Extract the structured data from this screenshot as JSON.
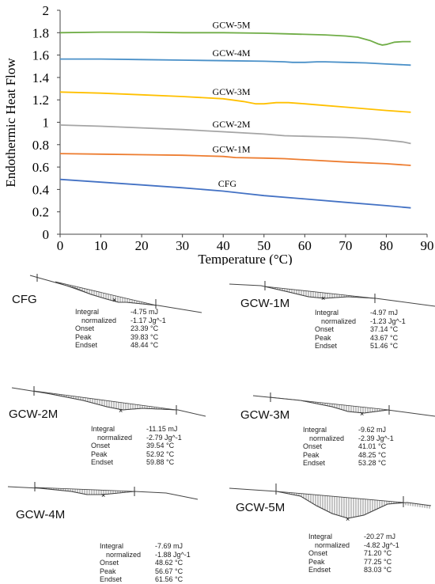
{
  "chart_data": {
    "type": "line",
    "xlabel": "Temperature (°C)",
    "ylabel": "Endothermic Heat Flow",
    "xlim": [
      0,
      90
    ],
    "ylim": [
      0,
      2
    ],
    "x_ticks": [
      "0",
      "10",
      "20",
      "30",
      "40",
      "50",
      "60",
      "70",
      "80",
      "90"
    ],
    "y_ticks": [
      "0",
      "0.2",
      "0.4",
      "0.6",
      "0.8",
      "1",
      "1.2",
      "1.4",
      "1.6",
      "1.8",
      "2"
    ],
    "grid": false,
    "series": [
      {
        "name": "GCW-5M",
        "color": "#70ad47",
        "x": [
          0,
          10,
          20,
          30,
          40,
          50,
          55,
          60,
          65,
          70,
          73,
          76,
          78,
          79,
          80,
          82,
          84,
          86
        ],
        "y": [
          1.8,
          1.805,
          1.805,
          1.8,
          1.8,
          1.795,
          1.79,
          1.785,
          1.78,
          1.77,
          1.76,
          1.73,
          1.7,
          1.69,
          1.695,
          1.715,
          1.72,
          1.72
        ]
      },
      {
        "name": "GCW-4M",
        "color": "#4a90c8",
        "x": [
          0,
          10,
          20,
          30,
          40,
          50,
          55,
          57,
          60,
          63,
          65,
          70,
          75,
          80,
          86
        ],
        "y": [
          1.565,
          1.565,
          1.56,
          1.555,
          1.55,
          1.545,
          1.54,
          1.535,
          1.535,
          1.54,
          1.54,
          1.535,
          1.53,
          1.52,
          1.51
        ]
      },
      {
        "name": "GCW-3M",
        "color": "#ffc000",
        "x": [
          0,
          10,
          20,
          30,
          40,
          45,
          48,
          50,
          53,
          56,
          60,
          65,
          70,
          75,
          80,
          86
        ],
        "y": [
          1.27,
          1.26,
          1.245,
          1.23,
          1.21,
          1.185,
          1.165,
          1.165,
          1.175,
          1.175,
          1.165,
          1.15,
          1.135,
          1.12,
          1.105,
          1.09
        ]
      },
      {
        "name": "GCW-2M",
        "color": "#a5a5a5",
        "x": [
          0,
          10,
          20,
          30,
          40,
          50,
          55,
          60,
          65,
          70,
          75,
          80,
          84,
          86
        ],
        "y": [
          0.975,
          0.965,
          0.95,
          0.935,
          0.915,
          0.895,
          0.88,
          0.875,
          0.87,
          0.865,
          0.855,
          0.84,
          0.825,
          0.81
        ]
      },
      {
        "name": "GCW-1M",
        "color": "#ed7d31",
        "x": [
          0,
          10,
          20,
          30,
          40,
          43,
          50,
          55,
          60,
          70,
          80,
          86
        ],
        "y": [
          0.72,
          0.715,
          0.71,
          0.705,
          0.695,
          0.685,
          0.68,
          0.675,
          0.665,
          0.645,
          0.63,
          0.615
        ]
      },
      {
        "name": "CFG",
        "color": "#4472c4",
        "x": [
          0,
          10,
          20,
          30,
          40,
          45,
          50,
          60,
          70,
          80,
          86
        ],
        "y": [
          0.49,
          0.465,
          0.44,
          0.415,
          0.385,
          0.365,
          0.345,
          0.315,
          0.285,
          0.255,
          0.235
        ]
      }
    ]
  },
  "panels": [
    {
      "name": "CFG",
      "integral": "-4.75 mJ",
      "normalized": "-1.17 Jg^-1",
      "onset": "23.39 °C",
      "peak": "39.83 °C",
      "endset": "48.44 °C"
    },
    {
      "name": "GCW-1M",
      "integral": "-4.97 mJ",
      "normalized": "-1.23 Jg^-1",
      "onset": "37.14 °C",
      "peak": "43.67 °C",
      "endset": "51.46 °C"
    },
    {
      "name": "GCW-2M",
      "integral": "-11.15 mJ",
      "normalized": "-2.79 Jg^-1",
      "onset": "39.54 °C",
      "peak": "52.92 °C",
      "endset": "59.88 °C"
    },
    {
      "name": "GCW-3M",
      "integral": "-9.62 mJ",
      "normalized": "-2.39 Jg^-1",
      "onset": "41.01 °C",
      "peak": "48.25 °C",
      "endset": "53.28 °C"
    },
    {
      "name": "GCW-4M",
      "integral": "-7.69 mJ",
      "normalized": "-1.88 Jg^-1",
      "onset": "48.62 °C",
      "peak": "56.67 °C",
      "endset": "61.56 °C"
    },
    {
      "name": "GCW-5M",
      "integral": "-20.27 mJ",
      "normalized": "-4.82 Jg^-1",
      "onset": "71.20 °C",
      "peak": "77.25 °C",
      "endset": "83.03 °C"
    }
  ],
  "stat_labels": {
    "integral": "Integral",
    "normalized": "normalized",
    "onset": "Onset",
    "peak": "Peak",
    "endset": "Endset"
  }
}
